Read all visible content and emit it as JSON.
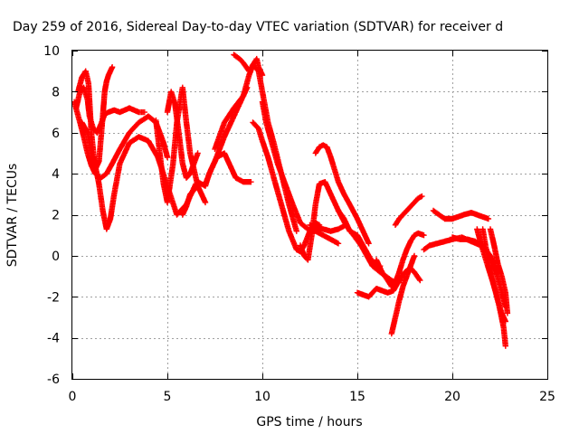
{
  "chart_data": {
    "type": "scatter",
    "title": "Day 259 of 2016, Sidereal Day-to-day VTEC variation (SDTVAR) for receiver d",
    "xlabel": "GPS time / hours",
    "ylabel": "SDTVAR / TECUs",
    "xlim": [
      0,
      25
    ],
    "ylim": [
      -6,
      10
    ],
    "xticks": [
      0,
      5,
      10,
      15,
      20,
      25
    ],
    "yticks": [
      -6,
      -4,
      -2,
      0,
      2,
      4,
      6,
      8,
      10
    ],
    "grid": true,
    "marker": "+",
    "color": "#ff0000",
    "series": [
      {
        "x": [
          0.1,
          0.4,
          0.6,
          0.8,
          1.0,
          1.2,
          1.5,
          1.8,
          2.1,
          2.5,
          3.0,
          3.5,
          4.0,
          4.4,
          4.8,
          5.0
        ],
        "y": [
          7.5,
          6.5,
          5.8,
          5.0,
          4.4,
          4.0,
          3.8,
          4.0,
          4.5,
          5.2,
          6.0,
          6.5,
          6.8,
          6.5,
          5.5,
          4.8
        ]
      },
      {
        "x": [
          0.2,
          0.4,
          0.6,
          0.8,
          0.9,
          1.1,
          1.3,
          1.5,
          1.7,
          1.9,
          2.2,
          2.5,
          3.0,
          3.5,
          3.8
        ],
        "y": [
          7.2,
          8.0,
          8.2,
          7.6,
          6.8,
          6.2,
          6.0,
          6.4,
          6.9,
          7.0,
          7.1,
          7.0,
          7.2,
          7.0,
          7.0
        ]
      },
      {
        "x": [
          0.3,
          0.5,
          0.7,
          0.85,
          1.0,
          1.2,
          1.4,
          1.6,
          1.7,
          1.8,
          1.9,
          2.0,
          2.1
        ],
        "y": [
          8.0,
          8.7,
          9.0,
          8.4,
          6.0,
          4.2,
          4.6,
          6.8,
          8.0,
          8.5,
          8.8,
          9.0,
          9.2
        ]
      },
      {
        "x": [
          0.5,
          0.8,
          1.0,
          1.2,
          1.4,
          1.6,
          1.8,
          2.0,
          2.2,
          2.5,
          3.0,
          3.5,
          4.0,
          4.5,
          5.0,
          5.5,
          6.0,
          6.5
        ],
        "y": [
          6.5,
          6.0,
          5.0,
          4.4,
          3.5,
          2.2,
          1.3,
          1.8,
          3.0,
          4.5,
          5.5,
          5.8,
          5.6,
          4.8,
          3.4,
          2.0,
          2.5,
          3.5
        ]
      },
      {
        "x": [
          4.4,
          4.6,
          4.8,
          5.0,
          5.3,
          5.5,
          5.8,
          6.0,
          6.2,
          6.4,
          6.6,
          6.8,
          7.0
        ],
        "y": [
          6.6,
          5.0,
          3.5,
          2.6,
          4.5,
          6.5,
          8.2,
          6.5,
          5.0,
          4.2,
          3.4,
          3.0,
          2.6
        ]
      },
      {
        "x": [
          5.0,
          5.2,
          5.4,
          5.6,
          5.8,
          6.0,
          6.2,
          6.4,
          6.6
        ],
        "y": [
          7.0,
          8.0,
          7.4,
          6.0,
          4.5,
          3.8,
          4.0,
          4.5,
          5.0
        ]
      },
      {
        "x": [
          5.8,
          6.0,
          6.2,
          6.4,
          6.6,
          6.8,
          7.0,
          7.2,
          7.5,
          8.0,
          8.5,
          9.0,
          9.2
        ],
        "y": [
          2.0,
          2.4,
          3.0,
          3.2,
          3.6,
          3.5,
          3.4,
          4.0,
          4.6,
          5.8,
          6.8,
          7.8,
          8.2
        ]
      },
      {
        "x": [
          7.0,
          7.3,
          7.6,
          8.0,
          8.2,
          8.4,
          8.6,
          9.0,
          9.4
        ],
        "y": [
          3.5,
          4.2,
          4.8,
          5.0,
          4.6,
          4.2,
          3.8,
          3.6,
          3.6
        ]
      },
      {
        "x": [
          7.5,
          8.0,
          8.5,
          9.0,
          9.3,
          9.5,
          9.7,
          9.8,
          9.9,
          10.0
        ],
        "y": [
          5.2,
          6.5,
          7.2,
          7.8,
          8.8,
          9.3,
          9.6,
          9.2,
          9.0,
          8.8
        ]
      },
      {
        "x": [
          8.5,
          8.8,
          9.0,
          9.3,
          9.5,
          9.8,
          10.0,
          10.3,
          10.6,
          11.0,
          11.4,
          11.8
        ],
        "y": [
          9.8,
          9.6,
          9.4,
          9.0,
          9.3,
          9.0,
          8.0,
          6.5,
          5.5,
          4.0,
          2.5,
          1.2
        ]
      },
      {
        "x": [
          9.5,
          9.8,
          10.0,
          10.3,
          10.6,
          11.0,
          11.4,
          11.8,
          12.0,
          12.2,
          12.5,
          12.8,
          13.0
        ],
        "y": [
          6.5,
          6.2,
          5.6,
          4.8,
          3.8,
          2.5,
          1.2,
          0.3,
          0.2,
          0.5,
          1.2,
          1.6,
          1.5
        ]
      },
      {
        "x": [
          10.0,
          10.2,
          10.5,
          10.8,
          11.2,
          11.6,
          12.0,
          12.4,
          12.8,
          13.2,
          13.6,
          14.0
        ],
        "y": [
          7.5,
          6.5,
          5.5,
          4.5,
          3.5,
          2.5,
          1.6,
          1.3,
          1.2,
          1.0,
          0.8,
          0.6
        ]
      },
      {
        "x": [
          12.0,
          12.2,
          12.4,
          12.6,
          12.8,
          13.0,
          13.3,
          13.6,
          14.0,
          14.4
        ],
        "y": [
          0.5,
          0.0,
          -0.2,
          1.0,
          2.5,
          3.5,
          3.6,
          3.0,
          2.2,
          1.5
        ]
      },
      {
        "x": [
          12.8,
          13.0,
          13.2,
          13.4,
          13.6,
          13.8,
          14.0,
          14.3,
          14.6,
          15.0,
          15.4,
          15.6
        ],
        "y": [
          5.0,
          5.3,
          5.4,
          5.3,
          4.8,
          4.2,
          3.6,
          3.0,
          2.5,
          1.8,
          1.0,
          0.6
        ]
      },
      {
        "x": [
          12.5,
          12.8,
          13.2,
          13.6,
          14.0,
          14.4,
          14.8,
          15.2,
          15.5,
          15.8,
          16.2,
          16.5,
          16.8,
          17.0,
          17.3
        ],
        "y": [
          1.5,
          1.4,
          1.3,
          1.2,
          1.3,
          1.5,
          1.0,
          0.5,
          0.0,
          -0.5,
          -0.8,
          -1.0,
          -1.2,
          -1.3,
          -1.2
        ]
      },
      {
        "x": [
          14.0,
          14.3,
          14.6,
          15.0,
          15.3,
          15.6,
          15.8,
          16.0,
          16.2
        ],
        "y": [
          2.2,
          1.8,
          1.2,
          1.0,
          0.5,
          0.0,
          -0.3,
          -0.5,
          -0.5
        ]
      },
      {
        "x": [
          15.0,
          15.3,
          15.6,
          15.8,
          16.0,
          16.3,
          16.6,
          16.9,
          17.2,
          17.5,
          17.8,
          18.0,
          18.3
        ],
        "y": [
          -1.8,
          -1.9,
          -2.0,
          -1.8,
          -1.6,
          -1.7,
          -1.8,
          -1.7,
          -1.2,
          -0.8,
          -0.6,
          -0.8,
          -1.2
        ]
      },
      {
        "x": [
          16.0,
          16.3,
          16.6,
          16.8,
          17.0,
          17.2,
          17.4,
          17.6,
          17.8,
          18.0,
          18.2,
          18.5
        ],
        "y": [
          -0.2,
          -0.8,
          -1.2,
          -1.5,
          -1.3,
          -0.8,
          -0.2,
          0.3,
          0.7,
          1.0,
          1.1,
          1.0
        ]
      },
      {
        "x": [
          16.8,
          17.0,
          17.2,
          17.4,
          17.6,
          17.8,
          18.0
        ],
        "y": [
          -3.8,
          -3.0,
          -2.2,
          -1.5,
          -1.0,
          -0.5,
          0.0
        ]
      },
      {
        "x": [
          17.0,
          17.2,
          17.4,
          17.6,
          17.8,
          18.0,
          18.2,
          18.4
        ],
        "y": [
          1.5,
          1.8,
          2.0,
          2.2,
          2.4,
          2.6,
          2.8,
          2.9
        ]
      },
      {
        "x": [
          18.5,
          18.8,
          19.2,
          19.6,
          20.0,
          20.5,
          21.0,
          21.5,
          21.8
        ],
        "y": [
          0.3,
          0.5,
          0.6,
          0.7,
          0.8,
          0.9,
          0.7,
          0.5,
          0.3
        ]
      },
      {
        "x": [
          19.0,
          19.3,
          19.6,
          20.0,
          20.3,
          20.6,
          21.0,
          21.3,
          21.6,
          21.9
        ],
        "y": [
          2.2,
          2.0,
          1.8,
          1.8,
          1.9,
          2.0,
          2.1,
          2.0,
          1.9,
          1.8
        ]
      },
      {
        "x": [
          20.0,
          20.4,
          20.8,
          21.2,
          21.6,
          22.0,
          22.3,
          22.6,
          22.8
        ],
        "y": [
          0.9,
          0.8,
          0.8,
          0.7,
          0.5,
          0.0,
          -0.8,
          -1.8,
          -2.5
        ]
      },
      {
        "x": [
          21.3,
          21.5,
          21.7,
          21.9,
          22.1,
          22.3,
          22.5,
          22.7,
          22.8
        ],
        "y": [
          1.3,
          0.6,
          0.0,
          -0.6,
          -1.2,
          -1.8,
          -2.6,
          -3.5,
          -4.4
        ]
      },
      {
        "x": [
          21.6,
          21.8,
          22.0,
          22.2,
          22.4,
          22.6,
          22.8
        ],
        "y": [
          1.3,
          0.2,
          -0.8,
          -1.5,
          -2.2,
          -2.8,
          -3.2
        ]
      },
      {
        "x": [
          22.0,
          22.2,
          22.4,
          22.6,
          22.8,
          22.9
        ],
        "y": [
          1.3,
          0.5,
          -0.4,
          -1.0,
          -1.8,
          -2.8
        ]
      }
    ]
  }
}
